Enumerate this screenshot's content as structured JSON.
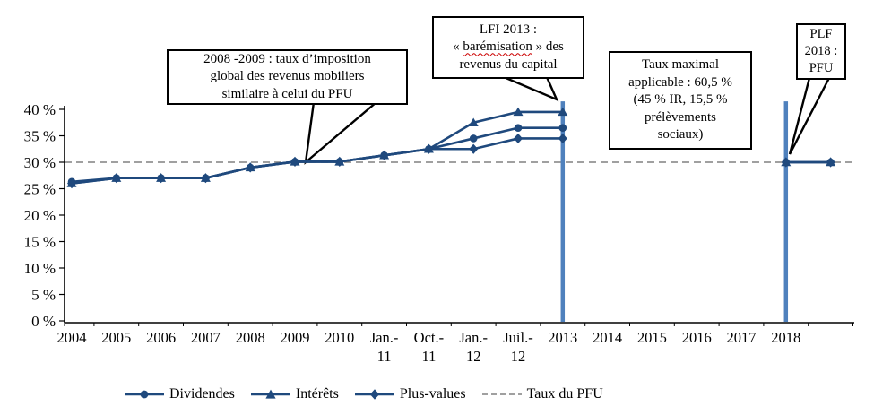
{
  "chart_data": {
    "type": "line",
    "title": "",
    "categories": [
      "2004",
      "2005",
      "2006",
      "2007",
      "2008",
      "2009",
      "2010",
      "Jan.-\n11",
      "Oct.-\n11",
      "Jan.-\n12",
      "Juil.-\n12",
      "2013",
      "2014",
      "2015",
      "2016",
      "2017",
      "2018",
      ""
    ],
    "series": [
      {
        "name": "Dividendes",
        "marker": "circle",
        "values": [
          26.3,
          27,
          27,
          27,
          29,
          30.1,
          30.1,
          31.3,
          32.5,
          34.5,
          36.5,
          36.5,
          null,
          null,
          null,
          null,
          30,
          30
        ]
      },
      {
        "name": "Intérêts",
        "marker": "triangle",
        "values": [
          26,
          27,
          27,
          27,
          29,
          30.1,
          30.1,
          31.3,
          32.5,
          37.5,
          39.5,
          39.5,
          null,
          null,
          null,
          null,
          30,
          30
        ]
      },
      {
        "name": "Plus-values",
        "marker": "diamond",
        "values": [
          26,
          27,
          27,
          27,
          29,
          30.1,
          30.1,
          31.3,
          32.5,
          32.5,
          34.5,
          34.5,
          null,
          null,
          null,
          null,
          30,
          30
        ]
      }
    ],
    "reference_line": {
      "name": "Taux du PFU",
      "value": 30,
      "style": "dashed"
    },
    "vertical_bars": [
      {
        "category": "2013",
        "from": 0,
        "to": 41.5
      },
      {
        "category": "2018",
        "from": 0,
        "to": 41.5
      }
    ],
    "ylim": [
      0,
      40
    ],
    "ytick_step": 5,
    "ytick_suffix": " %",
    "grid": false,
    "legend_position": "bottom",
    "colors": {
      "series": "#1f497d",
      "bars": "#4f81bd",
      "reference": "#808080"
    }
  },
  "annotations": {
    "global_2008": "2008 -2009 : taux d’imposition\nglobal des revenus mobiliers\nsimilaire à celui du PFU",
    "lfi_2013": {
      "line1": "LFI 2013 :",
      "line2_prefix": "« ",
      "line2_word": "barémisation",
      "line2_suffix": " » des",
      "line3": "revenus du capital"
    },
    "taux_maximal": "Taux maximal\napplicable : 60,5 %\n(45 % IR, 15,5 %\nprélèvements\nsociaux)",
    "plf_2018": "PLF\n2018 :\nPFU"
  },
  "legend": {
    "items": [
      {
        "label": "Dividendes",
        "marker": "circle"
      },
      {
        "label": "Intérêts",
        "marker": "triangle"
      },
      {
        "label": "Plus-values",
        "marker": "diamond"
      },
      {
        "label": "Taux du PFU",
        "marker": "dashed-line"
      }
    ]
  }
}
